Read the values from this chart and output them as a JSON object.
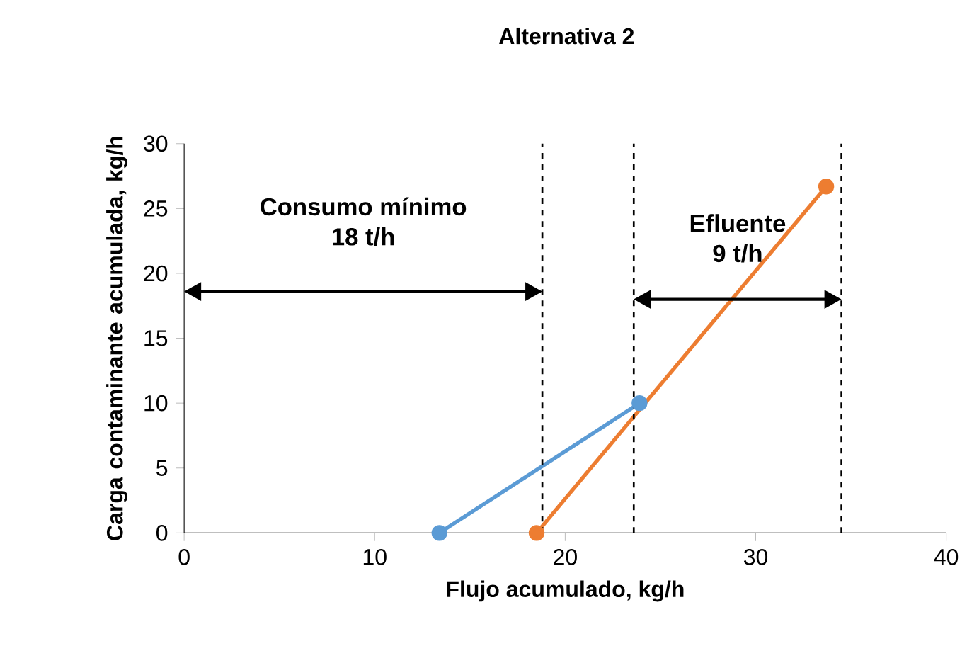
{
  "chart_data": {
    "type": "line",
    "title": "Alternativa 2",
    "xlabel": "Flujo acumulado, kg/h",
    "ylabel": "Carga contaminante acumulada, kg/h",
    "series": [
      {
        "color": "#5b9bd5",
        "x": [
          13.4,
          23.9
        ],
        "values": [
          0,
          10
        ]
      },
      {
        "color": "#ed7d31",
        "x": [
          18.5,
          33.7
        ],
        "values": [
          0,
          26.7
        ]
      }
    ],
    "marker": "circle",
    "line_style": "solid",
    "xlim": [
      0,
      40
    ],
    "xticks": [
      0,
      10,
      20,
      30,
      40
    ],
    "ylim": [
      0,
      30
    ],
    "yticks": [
      0,
      5,
      10,
      15,
      20,
      25,
      30
    ],
    "ref_lines": [
      {
        "axis": "x",
        "value": 18.8,
        "line_style": "dashed"
      },
      {
        "axis": "x",
        "value": 23.6,
        "line_style": "dashed"
      },
      {
        "axis": "x",
        "value": 34.5,
        "line_style": "dashed"
      }
    ],
    "annotations": [
      "Consumo mínimo",
      "18 t/h",
      "Efluente",
      "9 t/h"
    ]
  }
}
